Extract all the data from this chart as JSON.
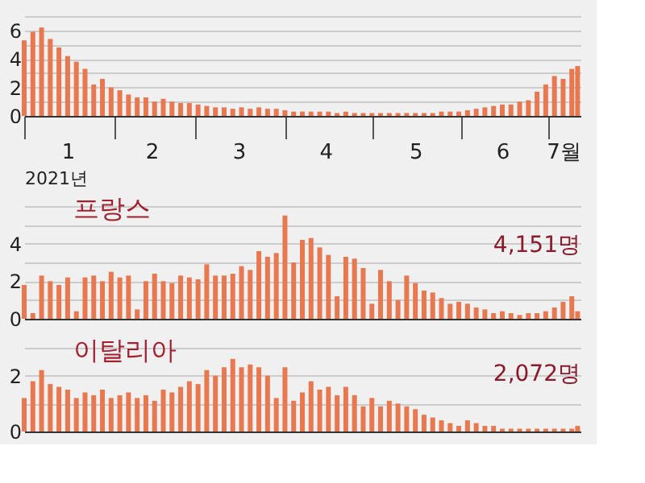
{
  "chart_data": [
    {
      "type": "bar",
      "xlabel": "2021년",
      "x": [
        "2021-01-01",
        "2021-01-04",
        "2021-01-07",
        "2021-01-10",
        "2021-01-13",
        "2021-01-16",
        "2021-01-19",
        "2021-01-22",
        "2021-01-25",
        "2021-01-28",
        "2021-01-31",
        "2021-02-03",
        "2021-02-06",
        "2021-02-09",
        "2021-02-12",
        "2021-02-15",
        "2021-02-18",
        "2021-02-21",
        "2021-02-24",
        "2021-02-27",
        "2021-03-02",
        "2021-03-05",
        "2021-03-08",
        "2021-03-11",
        "2021-03-14",
        "2021-03-17",
        "2021-03-20",
        "2021-03-23",
        "2021-03-26",
        "2021-03-29",
        "2021-04-01",
        "2021-04-04",
        "2021-04-07",
        "2021-04-10",
        "2021-04-13",
        "2021-04-16",
        "2021-04-19",
        "2021-04-22",
        "2021-04-25",
        "2021-04-28",
        "2021-05-01",
        "2021-05-04",
        "2021-05-07",
        "2021-05-10",
        "2021-05-13",
        "2021-05-16",
        "2021-05-19",
        "2021-05-22",
        "2021-05-25",
        "2021-05-28",
        "2021-05-31",
        "2021-06-03",
        "2021-06-06",
        "2021-06-09",
        "2021-06-12",
        "2021-06-15",
        "2021-06-18",
        "2021-06-21",
        "2021-06-24",
        "2021-06-27",
        "2021-06-30",
        "2021-07-03",
        "2021-07-06",
        "2021-07-09",
        "2021-07-11"
      ],
      "values": [
        5.3,
        5.9,
        6.2,
        5.4,
        4.8,
        4.2,
        3.8,
        3.3,
        2.2,
        2.6,
        2.0,
        1.8,
        1.5,
        1.3,
        1.3,
        1.0,
        1.2,
        1.0,
        0.9,
        0.9,
        0.8,
        0.7,
        0.6,
        0.6,
        0.5,
        0.6,
        0.5,
        0.6,
        0.5,
        0.5,
        0.4,
        0.3,
        0.3,
        0.3,
        0.3,
        0.3,
        0.2,
        0.3,
        0.2,
        0.2,
        0.2,
        0.2,
        0.2,
        0.2,
        0.2,
        0.2,
        0.2,
        0.2,
        0.3,
        0.3,
        0.3,
        0.4,
        0.5,
        0.6,
        0.7,
        0.8,
        0.8,
        1.0,
        1.1,
        1.7,
        2.2,
        2.8,
        2.6,
        3.3,
        3.5
      ],
      "color": "#e8784f",
      "xlim": [
        "2021-01-01",
        "2021-07-12"
      ],
      "xticks": [
        {
          "value": "2021-01-01",
          "label": null
        },
        {
          "value": "2021-01-16",
          "label": "1"
        },
        {
          "value": "2021-02-01",
          "label": null
        },
        {
          "value": "2021-02-14",
          "label": "2"
        },
        {
          "value": "2021-03-01",
          "label": null
        },
        {
          "value": "2021-03-16",
          "label": "3"
        },
        {
          "value": "2021-04-01",
          "label": null
        },
        {
          "value": "2021-04-15",
          "label": "4"
        },
        {
          "value": "2021-05-01",
          "label": null
        },
        {
          "value": "2021-05-16",
          "label": "5"
        },
        {
          "value": "2021-06-01",
          "label": null
        },
        {
          "value": "2021-06-15",
          "label": "6"
        },
        {
          "value": "2021-07-01",
          "label": null
        },
        {
          "value": "2021-07-06",
          "label": "7월"
        }
      ],
      "ylim": [
        0,
        7
      ],
      "yticks": [
        0,
        {
          "value": 1,
          "label": null
        },
        2,
        {
          "value": 3,
          "label": null
        },
        4,
        {
          "value": 5,
          "label": null
        },
        6,
        {
          "value": 7,
          "label": null
        }
      ],
      "grid": "y"
    },
    {
      "type": "bar",
      "title": "프랑스",
      "x": [
        "2021-01-01",
        "2021-01-04",
        "2021-01-07",
        "2021-01-10",
        "2021-01-13",
        "2021-01-16",
        "2021-01-19",
        "2021-01-22",
        "2021-01-25",
        "2021-01-28",
        "2021-01-31",
        "2021-02-03",
        "2021-02-06",
        "2021-02-09",
        "2021-02-12",
        "2021-02-15",
        "2021-02-18",
        "2021-02-21",
        "2021-02-24",
        "2021-02-27",
        "2021-03-02",
        "2021-03-05",
        "2021-03-08",
        "2021-03-11",
        "2021-03-14",
        "2021-03-17",
        "2021-03-20",
        "2021-03-23",
        "2021-03-26",
        "2021-03-29",
        "2021-04-01",
        "2021-04-04",
        "2021-04-07",
        "2021-04-10",
        "2021-04-13",
        "2021-04-16",
        "2021-04-19",
        "2021-04-22",
        "2021-04-25",
        "2021-04-28",
        "2021-05-01",
        "2021-05-04",
        "2021-05-07",
        "2021-05-10",
        "2021-05-13",
        "2021-05-16",
        "2021-05-19",
        "2021-05-22",
        "2021-05-25",
        "2021-05-28",
        "2021-05-31",
        "2021-06-03",
        "2021-06-06",
        "2021-06-09",
        "2021-06-12",
        "2021-06-15",
        "2021-06-18",
        "2021-06-21",
        "2021-06-24",
        "2021-06-27",
        "2021-06-30",
        "2021-07-03",
        "2021-07-06",
        "2021-07-09",
        "2021-07-11"
      ],
      "values": [
        1.8,
        0.3,
        2.3,
        2.0,
        1.8,
        2.2,
        0.4,
        2.2,
        2.3,
        2.0,
        2.5,
        2.2,
        2.3,
        0.5,
        2.0,
        2.4,
        2.0,
        1.9,
        2.3,
        2.2,
        2.1,
        2.9,
        2.3,
        2.3,
        2.4,
        2.8,
        2.6,
        3.6,
        3.3,
        3.5,
        5.5,
        3.0,
        4.2,
        4.3,
        3.8,
        3.4,
        1.2,
        3.3,
        3.2,
        2.7,
        0.8,
        2.6,
        2.0,
        1.0,
        2.3,
        1.9,
        1.5,
        1.4,
        1.1,
        0.8,
        0.9,
        0.8,
        0.6,
        0.5,
        0.3,
        0.4,
        0.3,
        0.2,
        0.3,
        0.3,
        0.4,
        0.6,
        0.9,
        1.2,
        0.4
      ],
      "color": "#e8784f",
      "xlim": [
        "2021-01-01",
        "2021-07-12"
      ],
      "ylim": [
        0,
        6
      ],
      "yticks": [
        0,
        {
          "value": 1,
          "label": null
        },
        2,
        {
          "value": 3,
          "label": null
        },
        4,
        {
          "value": 5,
          "label": null
        },
        {
          "value": 6,
          "label": null
        }
      ],
      "grid": "y",
      "tick_labels": "y",
      "annotations": [
        "4,151명"
      ]
    },
    {
      "type": "bar",
      "title": "이탈리아",
      "x": [
        "2021-01-01",
        "2021-01-04",
        "2021-01-07",
        "2021-01-10",
        "2021-01-13",
        "2021-01-16",
        "2021-01-19",
        "2021-01-22",
        "2021-01-25",
        "2021-01-28",
        "2021-01-31",
        "2021-02-03",
        "2021-02-06",
        "2021-02-09",
        "2021-02-12",
        "2021-02-15",
        "2021-02-18",
        "2021-02-21",
        "2021-02-24",
        "2021-02-27",
        "2021-03-02",
        "2021-03-05",
        "2021-03-08",
        "2021-03-11",
        "2021-03-14",
        "2021-03-17",
        "2021-03-20",
        "2021-03-23",
        "2021-03-26",
        "2021-03-29",
        "2021-04-01",
        "2021-04-04",
        "2021-04-07",
        "2021-04-10",
        "2021-04-13",
        "2021-04-16",
        "2021-04-19",
        "2021-04-22",
        "2021-04-25",
        "2021-04-28",
        "2021-05-01",
        "2021-05-04",
        "2021-05-07",
        "2021-05-10",
        "2021-05-13",
        "2021-05-16",
        "2021-05-19",
        "2021-05-22",
        "2021-05-25",
        "2021-05-28",
        "2021-05-31",
        "2021-06-03",
        "2021-06-06",
        "2021-06-09",
        "2021-06-12",
        "2021-06-15",
        "2021-06-18",
        "2021-06-21",
        "2021-06-24",
        "2021-06-27",
        "2021-06-30",
        "2021-07-03",
        "2021-07-06",
        "2021-07-09",
        "2021-07-11"
      ],
      "values": [
        1.2,
        1.8,
        2.2,
        1.7,
        1.6,
        1.5,
        1.2,
        1.4,
        1.3,
        1.5,
        1.2,
        1.3,
        1.4,
        1.2,
        1.3,
        1.1,
        1.5,
        1.4,
        1.6,
        1.8,
        1.7,
        2.2,
        2.0,
        2.3,
        2.6,
        2.3,
        2.4,
        2.3,
        2.0,
        1.2,
        2.3,
        1.1,
        1.4,
        1.8,
        1.5,
        1.6,
        1.3,
        1.6,
        1.3,
        0.9,
        1.2,
        0.9,
        1.1,
        1.0,
        0.9,
        0.8,
        0.6,
        0.5,
        0.4,
        0.3,
        0.2,
        0.4,
        0.3,
        0.2,
        0.2,
        0.1,
        0.1,
        0.1,
        0.1,
        0.1,
        0.1,
        0.1,
        0.1,
        0.1,
        0.2
      ],
      "color": "#e8784f",
      "xlim": [
        "2021-01-01",
        "2021-07-12"
      ],
      "ylim": [
        0,
        3
      ],
      "yticks": [
        0,
        {
          "value": 1,
          "label": null
        },
        2,
        {
          "value": 3,
          "label": null
        }
      ],
      "grid": "y",
      "tick_labels": "y",
      "annotations": [
        "2,072명"
      ]
    }
  ]
}
